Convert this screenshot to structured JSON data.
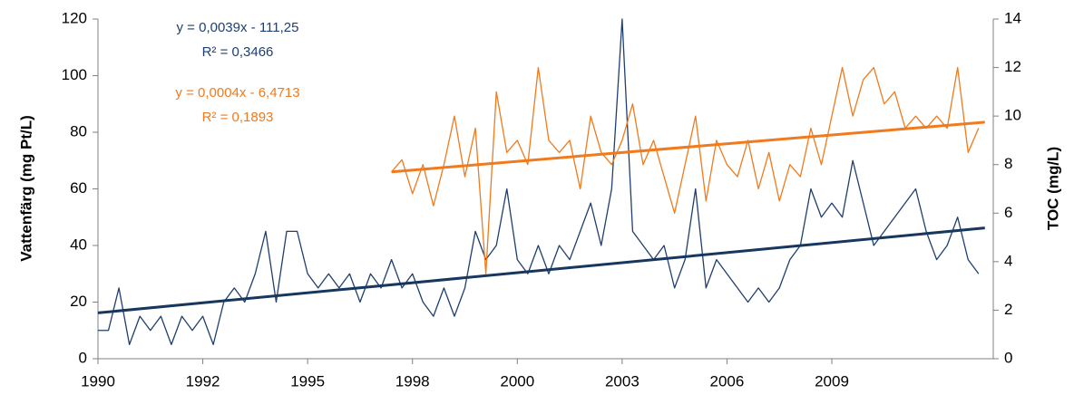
{
  "chart_data": {
    "type": "line",
    "y_label": "Vattenfärg (mg Pt/L)",
    "y2_label": "TOC (mg/L)",
    "xlim": [
      1990,
      2011.35
    ],
    "xticks": [
      {
        "value": 1990,
        "label": "1990"
      },
      {
        "value": 1992.5,
        "label": "1992"
      },
      {
        "value": 1995,
        "label": "1995"
      },
      {
        "value": 1997.5,
        "label": "1998"
      },
      {
        "value": 2000,
        "label": "2000"
      },
      {
        "value": 2002.5,
        "label": "2003"
      },
      {
        "value": 2005,
        "label": "2006"
      },
      {
        "value": 2007.5,
        "label": "2009"
      }
    ],
    "ylim": [
      0,
      120
    ],
    "yticks": [
      0,
      20,
      40,
      60,
      80,
      100,
      120
    ],
    "y2lim": [
      0,
      14
    ],
    "y2ticks": [
      0,
      2,
      4,
      6,
      8,
      10,
      12,
      14
    ],
    "series": [
      {
        "color": "#1f3f6e",
        "axis": "y",
        "x": [
          1990,
          1990.25,
          1990.5,
          1990.75,
          1991,
          1991.25,
          1991.5,
          1991.75,
          1992,
          1992.25,
          1992.5,
          1992.75,
          1993,
          1993.25,
          1993.5,
          1993.75,
          1994,
          1994.25,
          1994.5,
          1994.75,
          1995,
          1995.25,
          1995.5,
          1995.75,
          1996,
          1996.25,
          1996.5,
          1996.75,
          1997,
          1997.25,
          1997.5,
          1997.75,
          1998,
          1998.25,
          1998.5,
          1998.75,
          1999,
          1999.25,
          1999.5,
          1999.75,
          2000,
          2000.25,
          2000.5,
          2000.75,
          2001,
          2001.25,
          2001.5,
          2001.75,
          2002,
          2002.25,
          2002.5,
          2002.75,
          2003,
          2003.25,
          2003.5,
          2003.75,
          2004,
          2004.25,
          2004.5,
          2004.75,
          2005,
          2005.25,
          2005.5,
          2005.75,
          2006,
          2006.25,
          2006.5,
          2006.75,
          2007,
          2007.25,
          2007.5,
          2007.75,
          2008,
          2008.25,
          2008.5,
          2008.75,
          2009,
          2009.25,
          2009.5,
          2009.75,
          2010,
          2010.25,
          2010.5,
          2010.75,
          2011
        ],
        "values": [
          10,
          10,
          25,
          5,
          15,
          10,
          15,
          5,
          15,
          10,
          15,
          5,
          20,
          25,
          20,
          30,
          45,
          20,
          45,
          45,
          30,
          25,
          30,
          25,
          30,
          20,
          30,
          25,
          35,
          25,
          30,
          20,
          15,
          25,
          15,
          25,
          45,
          35,
          40,
          60,
          35,
          30,
          40,
          30,
          40,
          35,
          45,
          55,
          40,
          60,
          120,
          45,
          40,
          35,
          40,
          25,
          35,
          60,
          25,
          35,
          30,
          25,
          20,
          25,
          20,
          25,
          35,
          40,
          60,
          50,
          55,
          50,
          70,
          55,
          40,
          45,
          50,
          55,
          60,
          45,
          35,
          40,
          50,
          35,
          30
        ]
      },
      {
        "color": "#f07a1e",
        "axis": "y2",
        "x": [
          1997,
          1997.25,
          1997.5,
          1997.75,
          1998,
          1998.25,
          1998.5,
          1998.75,
          1999,
          1999.25,
          1999.5,
          1999.75,
          2000,
          2000.25,
          2000.5,
          2000.75,
          2001,
          2001.25,
          2001.5,
          2001.75,
          2002,
          2002.25,
          2002.5,
          2002.75,
          2003,
          2003.25,
          2003.5,
          2003.75,
          2004,
          2004.25,
          2004.5,
          2004.75,
          2005,
          2005.25,
          2005.5,
          2005.75,
          2006,
          2006.25,
          2006.5,
          2006.75,
          2007,
          2007.25,
          2007.5,
          2007.75,
          2008,
          2008.25,
          2008.5,
          2008.75,
          2009,
          2009.25,
          2009.5,
          2009.75,
          2010,
          2010.25,
          2010.5,
          2010.75,
          2011
        ],
        "values": [
          7.7,
          8.2,
          6.8,
          8.0,
          6.3,
          8.0,
          10.0,
          7.5,
          9.5,
          3.5,
          11.0,
          8.5,
          9.0,
          8.0,
          12.0,
          9.0,
          8.5,
          9.0,
          7.0,
          10.0,
          8.5,
          8.0,
          9.0,
          10.5,
          8.0,
          9.0,
          7.5,
          6.0,
          8.0,
          10.0,
          6.5,
          9.0,
          8.0,
          7.5,
          9.0,
          7.0,
          8.5,
          6.5,
          8.0,
          7.5,
          9.5,
          8.0,
          10.0,
          12.0,
          10.0,
          11.5,
          12.0,
          10.5,
          11.0,
          9.5,
          10.0,
          9.5,
          10.0,
          9.5,
          12.0,
          8.5,
          9.5
        ]
      }
    ],
    "trendlines": [
      {
        "color": "#17375e",
        "axis": "y",
        "x": [
          1990,
          2011.15
        ],
        "values": [
          16.2,
          46.2
        ]
      },
      {
        "color": "#f07a1e",
        "axis": "y2",
        "x": [
          1997,
          2011.15
        ],
        "values": [
          7.7,
          9.75
        ]
      }
    ],
    "annotations": [
      {
        "text": "y = 0,0039x - 111,25",
        "color": "#1f3f6e"
      },
      {
        "text": "R² = 0,3466",
        "color": "#1f3f6e"
      },
      {
        "text": "y = 0,0004x - 6,4713",
        "color": "#f07a1e"
      },
      {
        "text": "R² = 0,1893",
        "color": "#f07a1e"
      }
    ]
  }
}
